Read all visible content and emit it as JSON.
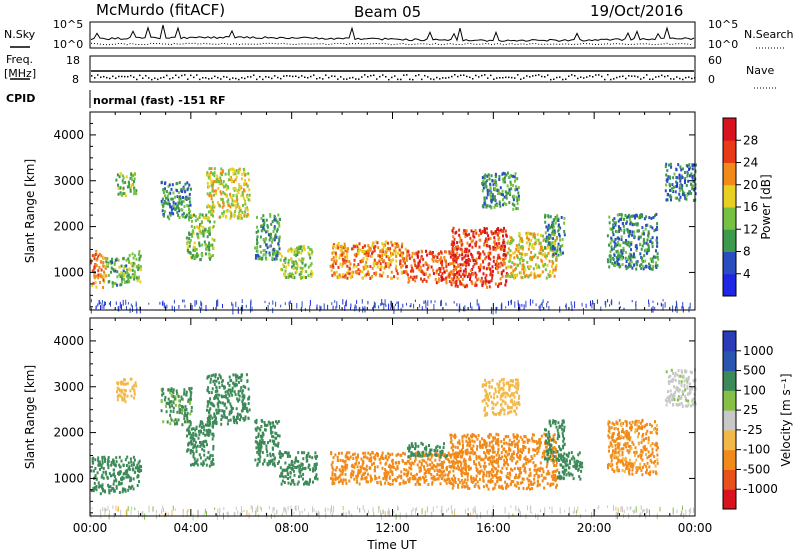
{
  "header": {
    "station": "McMurdo (fitACF)",
    "beam": "Beam 05",
    "date": "19/Oct/2016"
  },
  "noise_panel": {
    "left_label": "N.Sky",
    "right_label": "N.Search",
    "ticks_left": [
      "10^5",
      "10^0"
    ],
    "ticks_right": [
      "10^5",
      "10^0"
    ]
  },
  "freq_panel": {
    "left_label_1": "Freq.",
    "left_label_2": "[MHz]",
    "ticks_left": [
      "18",
      "8"
    ],
    "ticks_right": [
      "60",
      "0"
    ],
    "right_label": "Nave"
  },
  "cpid": {
    "label": "CPID",
    "value": "normal (fast) -151 RF"
  },
  "colors": {
    "power": [
      "#1f26e6",
      "#2a4ec0",
      "#3c9a4c",
      "#76c043",
      "#e8d022",
      "#f28a1a",
      "#e83a16",
      "#d8121e"
    ],
    "velocity": [
      "#d8121e",
      "#e8521a",
      "#f28a1a",
      "#f2b84a",
      "#c8c8c8",
      "#86c046",
      "#3c8a58",
      "#2a56b0",
      "#2a3cb8"
    ]
  },
  "chart_data": [
    {
      "type": "heatmap",
      "name": "power",
      "xlabel": "",
      "ylabel": "Slant Range [km]",
      "xlim": [
        "00:00",
        "24:00"
      ],
      "ylim": [
        180,
        4500
      ],
      "y_ticks": [
        "1000",
        "2000",
        "3000",
        "4000"
      ],
      "colorbar": {
        "label": "Power [dB]",
        "range": [
          0,
          32
        ],
        "tick_labels": [
          "4",
          "8",
          "12",
          "16",
          "20",
          "24",
          "28"
        ]
      },
      "regions": [
        {
          "t0": 0.0,
          "t1": 0.6,
          "r0": 700,
          "r1": 1500,
          "level": 22
        },
        {
          "t0": 0.6,
          "t1": 1.5,
          "r0": 700,
          "r1": 1350,
          "level": 12
        },
        {
          "t0": 1.5,
          "t1": 2.0,
          "r0": 800,
          "r1": 1500,
          "level": 14
        },
        {
          "t0": 1.0,
          "t1": 1.8,
          "r0": 2700,
          "r1": 3200,
          "level": 12
        },
        {
          "t0": 2.8,
          "t1": 4.0,
          "r0": 2200,
          "r1": 3000,
          "level": 10
        },
        {
          "t0": 3.8,
          "t1": 4.9,
          "r0": 1300,
          "r1": 2300,
          "level": 13
        },
        {
          "t0": 4.6,
          "t1": 6.3,
          "r0": 2200,
          "r1": 3300,
          "level": 17
        },
        {
          "t0": 6.5,
          "t1": 7.5,
          "r0": 1300,
          "r1": 2300,
          "level": 11
        },
        {
          "t0": 7.5,
          "t1": 8.8,
          "r0": 900,
          "r1": 1600,
          "level": 15
        },
        {
          "t0": 9.5,
          "t1": 12.5,
          "r0": 900,
          "r1": 1700,
          "level": 22
        },
        {
          "t0": 12.5,
          "t1": 14.5,
          "r0": 800,
          "r1": 1500,
          "level": 25
        },
        {
          "t0": 14.3,
          "t1": 16.5,
          "r0": 700,
          "r1": 2000,
          "level": 26
        },
        {
          "t0": 16.5,
          "t1": 18.5,
          "r0": 900,
          "r1": 1900,
          "level": 18
        },
        {
          "t0": 15.5,
          "t1": 17.0,
          "r0": 2400,
          "r1": 3200,
          "level": 10
        },
        {
          "t0": 18.0,
          "t1": 18.8,
          "r0": 1400,
          "r1": 2300,
          "level": 10
        },
        {
          "t0": 20.5,
          "t1": 22.5,
          "r0": 1100,
          "r1": 2300,
          "level": 9
        },
        {
          "t0": 22.8,
          "t1": 24.0,
          "r0": 2600,
          "r1": 3400,
          "level": 8
        }
      ]
    },
    {
      "type": "heatmap",
      "name": "velocity",
      "xlabel": "Time UT",
      "ylabel": "Slant Range [km]",
      "xlim": [
        "00:00",
        "24:00"
      ],
      "ylim": [
        180,
        4500
      ],
      "x_ticks": [
        "00:00",
        "04:00",
        "08:00",
        "12:00",
        "16:00",
        "20:00",
        "00:00"
      ],
      "y_ticks": [
        "1000",
        "2000",
        "3000",
        "4000"
      ],
      "colorbar": {
        "label": "Velocity [m s⁻¹]",
        "tick_labels": [
          "1000",
          "500",
          "100",
          "25",
          "-25",
          "-100",
          "-500",
          "-1000"
        ]
      },
      "regions": [
        {
          "t0": 0.0,
          "t1": 1.5,
          "r0": 700,
          "r1": 1500,
          "level": 150
        },
        {
          "t0": 1.5,
          "t1": 2.0,
          "r0": 800,
          "r1": 1500,
          "level": 200
        },
        {
          "t0": 1.0,
          "t1": 1.8,
          "r0": 2700,
          "r1": 3200,
          "level": -60
        },
        {
          "t0": 2.8,
          "t1": 4.0,
          "r0": 2200,
          "r1": 3000,
          "level": 120
        },
        {
          "t0": 3.8,
          "t1": 4.9,
          "r0": 1300,
          "r1": 2300,
          "level": 200
        },
        {
          "t0": 4.6,
          "t1": 6.3,
          "r0": 2200,
          "r1": 3300,
          "level": 200
        },
        {
          "t0": 6.5,
          "t1": 7.5,
          "r0": 1300,
          "r1": 2300,
          "level": 200
        },
        {
          "t0": 7.5,
          "t1": 9.0,
          "r0": 900,
          "r1": 1600,
          "level": 200
        },
        {
          "t0": 9.5,
          "t1": 11.0,
          "r0": 900,
          "r1": 1600,
          "level": -200
        },
        {
          "t0": 11.0,
          "t1": 14.5,
          "r0": 900,
          "r1": 1600,
          "level": -150
        },
        {
          "t0": 12.5,
          "t1": 14.2,
          "r0": 1500,
          "r1": 1800,
          "level": 200
        },
        {
          "t0": 14.2,
          "t1": 18.5,
          "r0": 800,
          "r1": 2000,
          "level": -300
        },
        {
          "t0": 15.5,
          "t1": 17.0,
          "r0": 2400,
          "r1": 3200,
          "level": -60
        },
        {
          "t0": 18.0,
          "t1": 18.8,
          "r0": 1400,
          "r1": 2300,
          "level": 200
        },
        {
          "t0": 18.5,
          "t1": 19.5,
          "r0": 1000,
          "r1": 1600,
          "level": 200
        },
        {
          "t0": 20.5,
          "t1": 22.5,
          "r0": 1100,
          "r1": 2300,
          "level": -120
        },
        {
          "t0": 22.8,
          "t1": 24.0,
          "r0": 2600,
          "r1": 3400,
          "level": 10
        }
      ]
    }
  ]
}
